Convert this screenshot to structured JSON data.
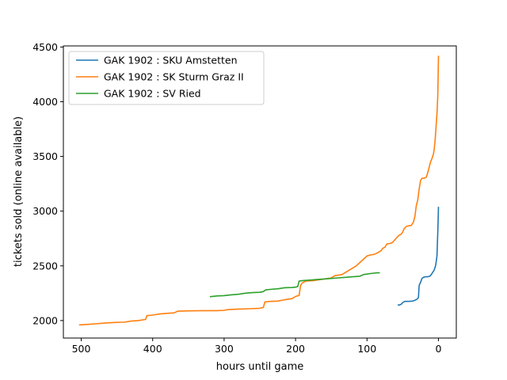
{
  "chart_data": {
    "type": "line",
    "title": "",
    "xlabel": "hours until game",
    "ylabel": "tickets sold (online available)",
    "xlim": [
      525,
      -25
    ],
    "ylim": [
      1840,
      4510
    ],
    "x_inverted": true,
    "xticks": [
      500,
      400,
      300,
      200,
      100,
      0
    ],
    "yticks": [
      2000,
      2500,
      3000,
      3500,
      4000,
      4500
    ],
    "grid": false,
    "legend_position": "top-left",
    "series": [
      {
        "name": "GAK 1902 : SKU Amstetten",
        "color": "#1f77b4",
        "points": [
          [
            57,
            2145
          ],
          [
            55,
            2140
          ],
          [
            52,
            2150
          ],
          [
            50,
            2165
          ],
          [
            47,
            2175
          ],
          [
            44,
            2175
          ],
          [
            40,
            2176
          ],
          [
            36,
            2178
          ],
          [
            33,
            2185
          ],
          [
            30,
            2195
          ],
          [
            28,
            2210
          ],
          [
            27,
            2320
          ],
          [
            25,
            2350
          ],
          [
            23,
            2385
          ],
          [
            21,
            2395
          ],
          [
            18,
            2400
          ],
          [
            15,
            2400
          ],
          [
            12,
            2405
          ],
          [
            10,
            2420
          ],
          [
            8,
            2440
          ],
          [
            6,
            2460
          ],
          [
            5,
            2480
          ],
          [
            4,
            2500
          ],
          [
            3,
            2540
          ],
          [
            2,
            2600
          ],
          [
            1.5,
            2700
          ],
          [
            1,
            2800
          ],
          [
            0.5,
            2900
          ],
          [
            0,
            3040
          ]
        ]
      },
      {
        "name": "GAK 1902 : SK Sturm Graz II",
        "color": "#ff7f0e",
        "points": [
          [
            503,
            1960
          ],
          [
            490,
            1965
          ],
          [
            480,
            1970
          ],
          [
            465,
            1978
          ],
          [
            450,
            1983
          ],
          [
            440,
            1985
          ],
          [
            430,
            1995
          ],
          [
            420,
            2000
          ],
          [
            410,
            2010
          ],
          [
            408,
            2045
          ],
          [
            400,
            2050
          ],
          [
            390,
            2060
          ],
          [
            380,
            2066
          ],
          [
            370,
            2070
          ],
          [
            365,
            2085
          ],
          [
            350,
            2088
          ],
          [
            330,
            2090
          ],
          [
            310,
            2090
          ],
          [
            300,
            2093
          ],
          [
            295,
            2100
          ],
          [
            280,
            2105
          ],
          [
            265,
            2108
          ],
          [
            250,
            2112
          ],
          [
            245,
            2120
          ],
          [
            243,
            2170
          ],
          [
            235,
            2175
          ],
          [
            225,
            2178
          ],
          [
            215,
            2190
          ],
          [
            205,
            2200
          ],
          [
            200,
            2220
          ],
          [
            195,
            2230
          ],
          [
            193,
            2320
          ],
          [
            191,
            2340
          ],
          [
            189,
            2350
          ],
          [
            185,
            2360
          ],
          [
            175,
            2365
          ],
          [
            165,
            2375
          ],
          [
            160,
            2380
          ],
          [
            150,
            2390
          ],
          [
            145,
            2410
          ],
          [
            135,
            2420
          ],
          [
            130,
            2440
          ],
          [
            125,
            2460
          ],
          [
            120,
            2480
          ],
          [
            115,
            2500
          ],
          [
            110,
            2530
          ],
          [
            105,
            2560
          ],
          [
            100,
            2590
          ],
          [
            95,
            2600
          ],
          [
            90,
            2605
          ],
          [
            85,
            2620
          ],
          [
            80,
            2640
          ],
          [
            78,
            2660
          ],
          [
            75,
            2670
          ],
          [
            72,
            2700
          ],
          [
            68,
            2705
          ],
          [
            65,
            2710
          ],
          [
            62,
            2730
          ],
          [
            58,
            2760
          ],
          [
            55,
            2780
          ],
          [
            52,
            2790
          ],
          [
            50,
            2810
          ],
          [
            48,
            2840
          ],
          [
            45,
            2860
          ],
          [
            42,
            2865
          ],
          [
            38,
            2870
          ],
          [
            35,
            2900
          ],
          [
            33,
            2950
          ],
          [
            31,
            3050
          ],
          [
            29,
            3100
          ],
          [
            27,
            3200
          ],
          [
            25,
            3280
          ],
          [
            23,
            3300
          ],
          [
            20,
            3300
          ],
          [
            17,
            3310
          ],
          [
            15,
            3350
          ],
          [
            13,
            3400
          ],
          [
            11,
            3450
          ],
          [
            9,
            3480
          ],
          [
            7,
            3520
          ],
          [
            6,
            3560
          ],
          [
            5,
            3620
          ],
          [
            4,
            3700
          ],
          [
            3,
            3800
          ],
          [
            2,
            3900
          ],
          [
            1,
            4050
          ],
          [
            0.5,
            4200
          ],
          [
            0,
            4420
          ]
        ]
      },
      {
        "name": "GAK 1902 : SV Ried",
        "color": "#2ca02c",
        "points": [
          [
            320,
            2218
          ],
          [
            310,
            2225
          ],
          [
            300,
            2228
          ],
          [
            290,
            2235
          ],
          [
            280,
            2240
          ],
          [
            270,
            2250
          ],
          [
            260,
            2255
          ],
          [
            250,
            2258
          ],
          [
            245,
            2265
          ],
          [
            242,
            2280
          ],
          [
            235,
            2285
          ],
          [
            225,
            2290
          ],
          [
            215,
            2300
          ],
          [
            205,
            2302
          ],
          [
            200,
            2305
          ],
          [
            197,
            2310
          ],
          [
            195,
            2360
          ],
          [
            190,
            2365
          ],
          [
            180,
            2370
          ],
          [
            170,
            2375
          ],
          [
            160,
            2380
          ],
          [
            150,
            2385
          ],
          [
            140,
            2390
          ],
          [
            130,
            2395
          ],
          [
            120,
            2400
          ],
          [
            110,
            2405
          ],
          [
            105,
            2420
          ],
          [
            100,
            2425
          ],
          [
            95,
            2430
          ],
          [
            90,
            2433
          ],
          [
            85,
            2436
          ],
          [
            82,
            2436
          ]
        ]
      }
    ]
  }
}
